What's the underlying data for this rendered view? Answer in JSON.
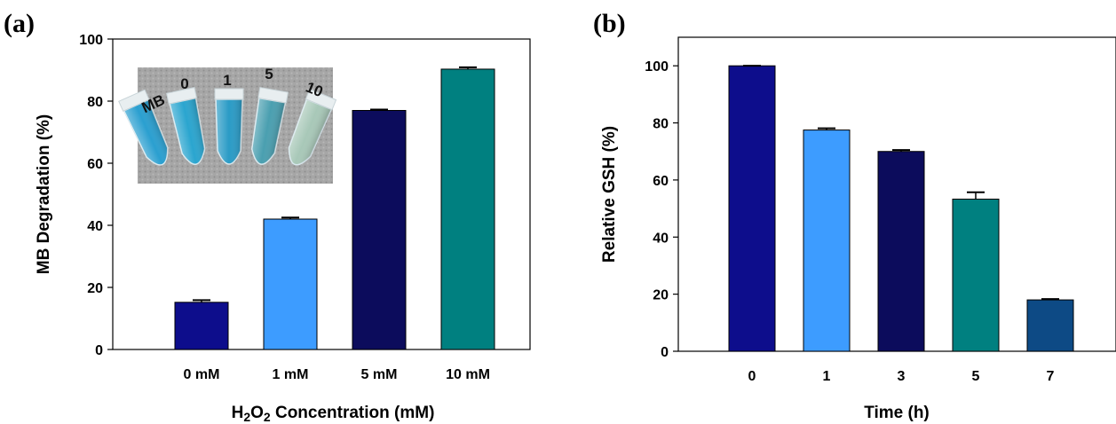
{
  "chart_data": [
    {
      "type": "bar",
      "panel_label": "(a)",
      "categories": [
        "0 mM",
        "1 mM",
        "5 mM",
        "10 mM"
      ],
      "values": [
        15.2,
        42.0,
        77.0,
        90.3
      ],
      "errors": [
        0.7,
        0.5,
        0.3,
        0.6
      ],
      "colors": [
        "#0d0d8c",
        "#3d9cff",
        "#0c0c5c",
        "#008080"
      ],
      "xlabel_parts": {
        "h": "H",
        "sub1": "2",
        "o": "O",
        "sub2": "2",
        "rest": " Concentration (mM)"
      },
      "ylabel": "MB Degradation (%)",
      "ylim": [
        0,
        100
      ],
      "yticks": [
        "0",
        "20",
        "40",
        "60",
        "80",
        "100"
      ],
      "grid": false,
      "inset_photo": {
        "labels": [
          "MB",
          "0",
          "1",
          "5",
          "10"
        ],
        "tube_colors": [
          "#2a9fd0",
          "#2aa5cf",
          "#2a9bc6",
          "#4a9fb0",
          "#a8c8b8"
        ]
      }
    },
    {
      "type": "bar",
      "panel_label": "(b)",
      "categories": [
        "0",
        "1",
        "3",
        "5",
        "7"
      ],
      "values": [
        100.0,
        77.5,
        70.0,
        53.3,
        18.0
      ],
      "errors": [
        0.0,
        0.6,
        0.5,
        2.4,
        0.3
      ],
      "colors": [
        "#0d0d8c",
        "#3d9cff",
        "#0c0c5c",
        "#008080",
        "#0d4a85"
      ],
      "xlabel": "Time (h)",
      "ylabel": "Relative GSH (%)",
      "ylim": [
        0,
        110
      ],
      "yticks": [
        "0",
        "20",
        "40",
        "60",
        "80",
        "100"
      ],
      "grid": false
    }
  ]
}
